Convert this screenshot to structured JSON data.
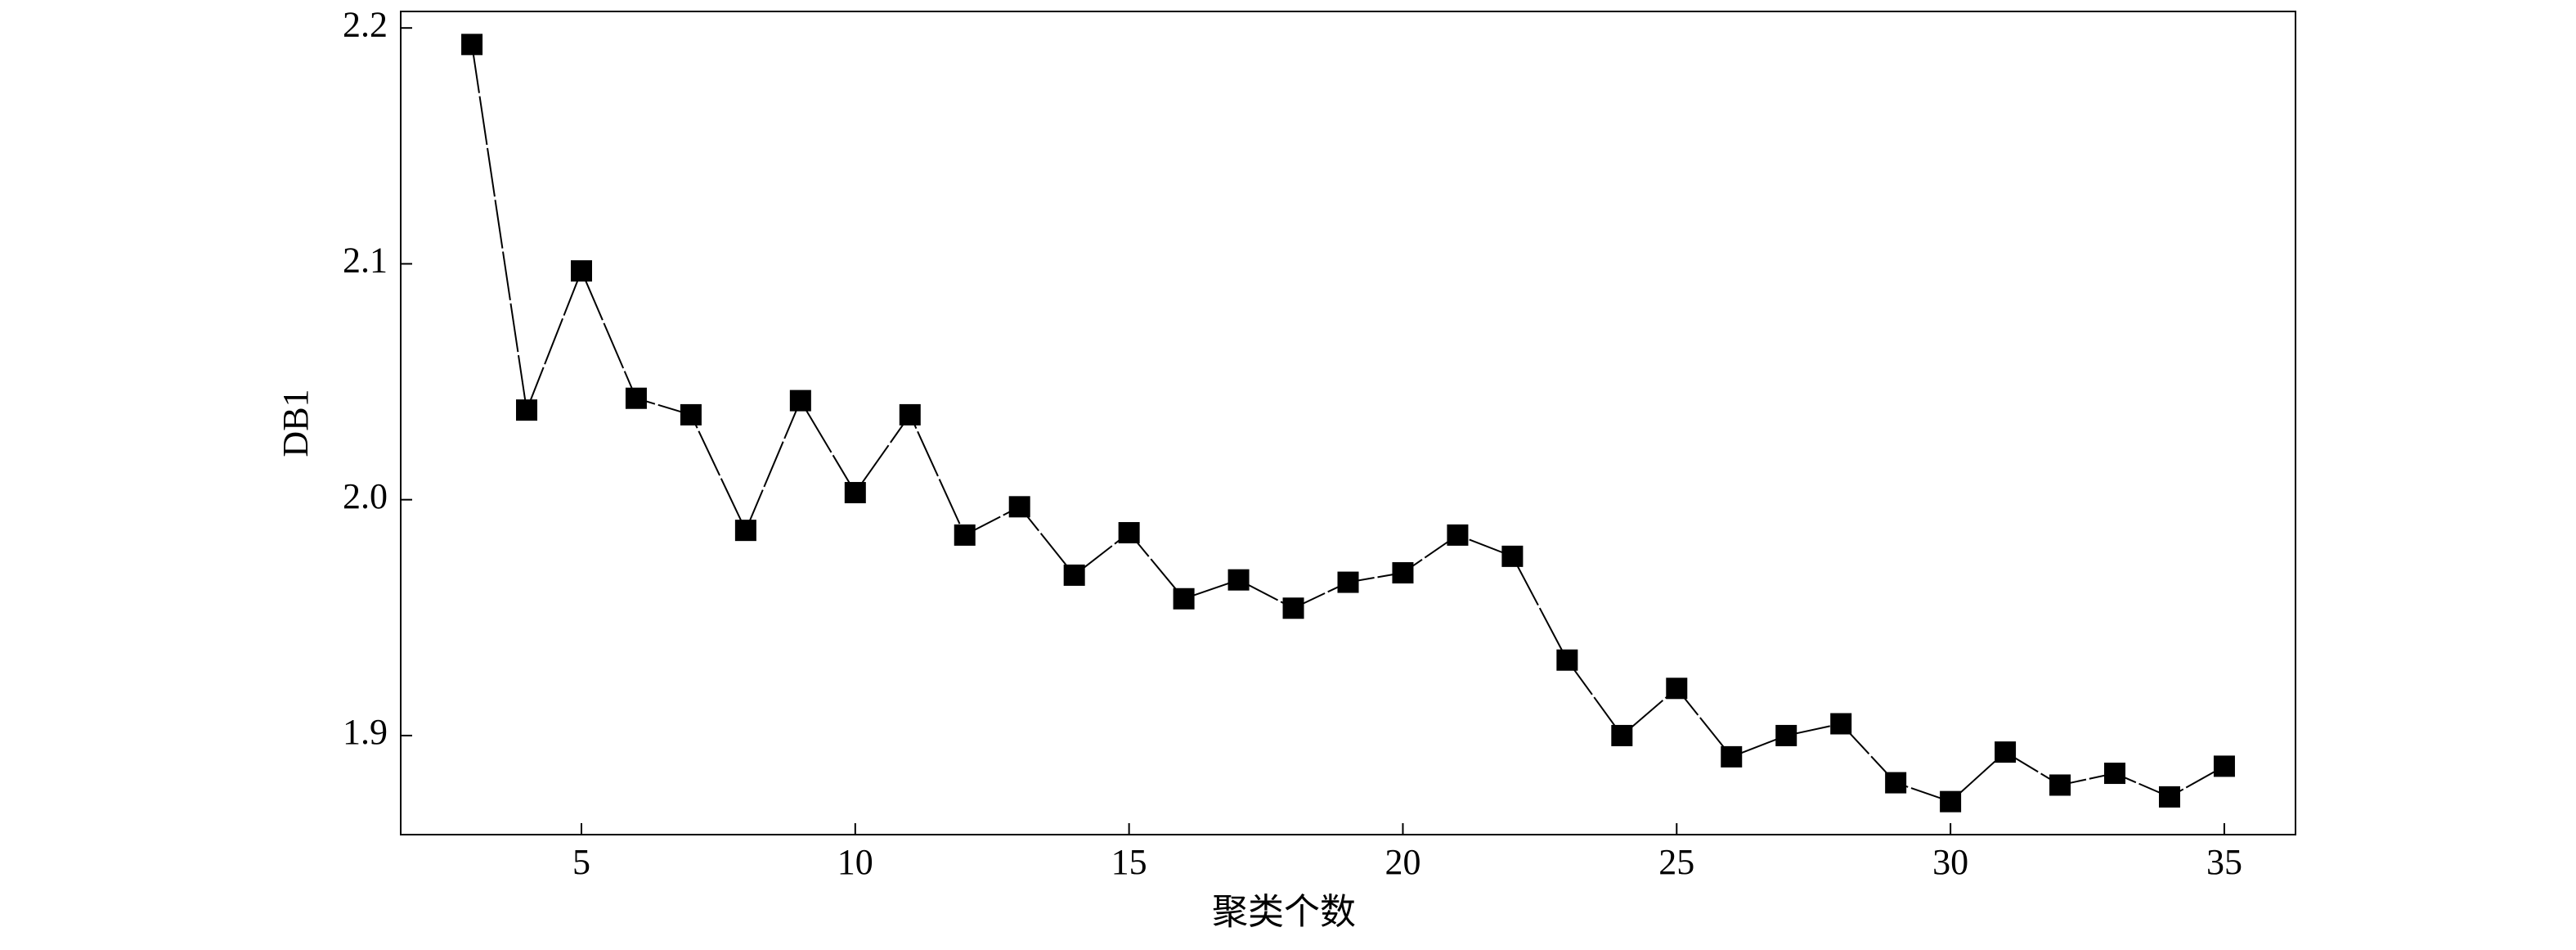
{
  "chart_data": {
    "type": "line",
    "xlabel": "聚类个数",
    "ylabel": "DB1",
    "x": [
      3,
      4,
      5,
      6,
      7,
      8,
      9,
      10,
      11,
      12,
      13,
      14,
      15,
      16,
      17,
      18,
      19,
      20,
      21,
      22,
      23,
      24,
      25,
      26,
      27,
      28,
      29,
      30,
      31,
      32,
      33,
      34,
      35
    ],
    "series": [
      {
        "color": "#000000",
        "values": [
          2.193,
          2.038,
          2.097,
          2.043,
          2.036,
          1.987,
          2.042,
          2.003,
          2.036,
          1.985,
          1.997,
          1.968,
          1.986,
          1.958,
          1.966,
          1.954,
          1.965,
          1.969,
          1.985,
          1.976,
          1.932,
          1.9,
          1.92,
          1.891,
          1.9,
          1.905,
          1.88,
          1.872,
          1.893,
          1.879,
          1.884,
          1.874,
          1.887
        ]
      }
    ],
    "xlim": [
      1.7,
      36.3
    ],
    "xticks": [
      5,
      10,
      15,
      20,
      25,
      30,
      35
    ],
    "ylim": [
      1.858,
      2.207
    ],
    "yticks": [
      1.9,
      {
        "value": 2.0,
        "label": "2.0"
      },
      2.1,
      2.2
    ],
    "marker": "square",
    "grid": false
  }
}
